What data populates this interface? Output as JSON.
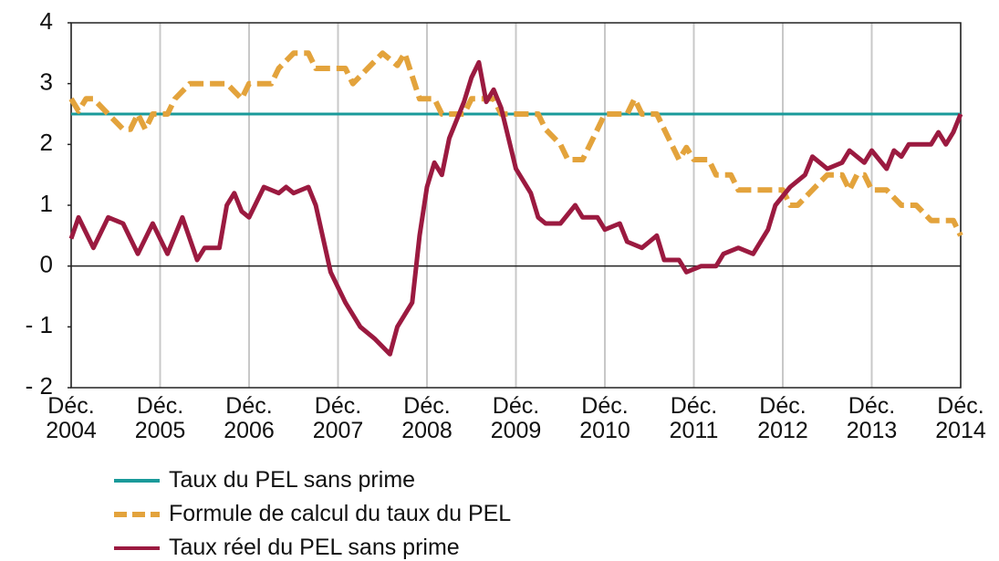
{
  "chart_data": {
    "type": "line",
    "xlim": [
      "2004-12",
      "2014-12"
    ],
    "xticks": [
      {
        "value": "2004-12",
        "label": "Déc. 2004"
      },
      {
        "value": "2005-12",
        "label": "Déc. 2005"
      },
      {
        "value": "2006-12",
        "label": "Déc. 2006"
      },
      {
        "value": "2007-12",
        "label": "Déc. 2007"
      },
      {
        "value": "2008-12",
        "label": "Déc. 2008"
      },
      {
        "value": "2009-12",
        "label": "Déc. 2009"
      },
      {
        "value": "2010-12",
        "label": "Déc. 2010"
      },
      {
        "value": "2011-12",
        "label": "Déc. 2011"
      },
      {
        "value": "2012-12",
        "label": "Déc. 2012"
      },
      {
        "value": "2013-12",
        "label": "Déc. 2013"
      },
      {
        "value": "2014-12",
        "label": "Déc. 2014"
      }
    ],
    "ylim": [
      -2,
      4
    ],
    "yticks": [
      {
        "value": -2,
        "label": "- 2"
      },
      {
        "value": -1,
        "label": "- 1"
      },
      0,
      1,
      2,
      3,
      4
    ],
    "grid": true,
    "legend": "bottom",
    "series": [
      {
        "name": "Taux du PEL sans prime",
        "color": "#1a9a9a",
        "dashed": false,
        "x": [
          "2004-12",
          "2014-12"
        ],
        "values": [
          2.5,
          2.5
        ]
      },
      {
        "name": "Formule de calcul du taux du PEL",
        "color": "#e3a33c",
        "dashed": true,
        "x": [
          "2004-12",
          "2005-01",
          "2005-02",
          "2005-03",
          "2005-05",
          "2005-07",
          "2005-08",
          "2005-09",
          "2005-10",
          "2005-11",
          "2006-01",
          "2006-02",
          "2006-04",
          "2006-09",
          "2006-11",
          "2006-12",
          "2007-03",
          "2007-04",
          "2007-06",
          "2007-08",
          "2007-09",
          "2008-01",
          "2008-02",
          "2008-04",
          "2008-06",
          "2008-08",
          "2008-09",
          "2008-11",
          "2009-01",
          "2009-02",
          "2009-05",
          "2009-06",
          "2009-09",
          "2009-10",
          "2010-03",
          "2010-04",
          "2010-06",
          "2010-07",
          "2010-09",
          "2010-11",
          "2010-12",
          "2011-03",
          "2011-04",
          "2011-05",
          "2011-07",
          "2011-09",
          "2011-10",
          "2011-11",
          "2011-12",
          "2012-02",
          "2012-03",
          "2012-05",
          "2012-06",
          "2012-11",
          "2012-12",
          "2013-01",
          "2013-02",
          "2013-04",
          "2013-06",
          "2013-08",
          "2013-09",
          "2013-10",
          "2013-11",
          "2013-12",
          "2014-02",
          "2014-04",
          "2014-06",
          "2014-08",
          "2014-11",
          "2014-12"
        ],
        "values": [
          2.75,
          2.55,
          2.75,
          2.75,
          2.5,
          2.25,
          2.25,
          2.5,
          2.25,
          2.5,
          2.5,
          2.75,
          3.0,
          3.0,
          2.75,
          3.0,
          3.0,
          3.25,
          3.5,
          3.5,
          3.25,
          3.25,
          3.0,
          3.25,
          3.5,
          3.3,
          3.5,
          2.75,
          2.75,
          2.5,
          2.5,
          2.75,
          2.75,
          2.5,
          2.5,
          2.25,
          2.0,
          1.75,
          1.75,
          2.25,
          2.5,
          2.5,
          2.75,
          2.5,
          2.5,
          2.0,
          1.75,
          1.95,
          1.75,
          1.75,
          1.5,
          1.5,
          1.25,
          1.25,
          1.25,
          1.0,
          1.0,
          1.25,
          1.5,
          1.5,
          1.25,
          1.5,
          1.5,
          1.25,
          1.25,
          1.0,
          1.0,
          0.75,
          0.75,
          0.5
        ]
      },
      {
        "name": "Taux réel du PEL sans prime",
        "color": "#9b1a40",
        "dashed": false,
        "x": [
          "2004-12",
          "2005-01",
          "2005-03",
          "2005-05",
          "2005-07",
          "2005-09",
          "2005-11",
          "2006-01",
          "2006-03",
          "2006-05",
          "2006-06",
          "2006-08",
          "2006-09",
          "2006-10",
          "2006-11",
          "2006-12",
          "2007-02",
          "2007-04",
          "2007-05",
          "2007-06",
          "2007-08",
          "2007-09",
          "2007-11",
          "2008-01",
          "2008-03",
          "2008-05",
          "2008-07",
          "2008-08",
          "2008-10",
          "2008-11",
          "2008-12",
          "2009-01",
          "2009-02",
          "2009-03",
          "2009-05",
          "2009-06",
          "2009-07",
          "2009-08",
          "2009-09",
          "2009-10",
          "2009-12",
          "2010-02",
          "2010-03",
          "2010-04",
          "2010-06",
          "2010-08",
          "2010-09",
          "2010-11",
          "2010-12",
          "2011-02",
          "2011-03",
          "2011-05",
          "2011-06",
          "2011-07",
          "2011-08",
          "2011-10",
          "2011-11",
          "2012-01",
          "2012-03",
          "2012-04",
          "2012-06",
          "2012-08",
          "2012-10",
          "2012-11",
          "2013-01",
          "2013-03",
          "2013-04",
          "2013-06",
          "2013-08",
          "2013-09",
          "2013-11",
          "2013-12",
          "2014-02",
          "2014-03",
          "2014-04",
          "2014-05",
          "2014-08",
          "2014-09",
          "2014-10",
          "2014-11",
          "2014-12"
        ],
        "values": [
          0.45,
          0.8,
          0.3,
          0.8,
          0.7,
          0.2,
          0.7,
          0.2,
          0.8,
          0.1,
          0.3,
          0.3,
          1.0,
          1.2,
          0.9,
          0.8,
          1.3,
          1.2,
          1.3,
          1.2,
          1.3,
          1.0,
          -0.1,
          -0.6,
          -1.0,
          -1.2,
          -1.45,
          -1.0,
          -0.6,
          0.5,
          1.3,
          1.7,
          1.5,
          2.1,
          2.7,
          3.1,
          3.35,
          2.7,
          2.9,
          2.6,
          1.6,
          1.2,
          0.8,
          0.7,
          0.7,
          1.0,
          0.8,
          0.8,
          0.6,
          0.7,
          0.4,
          0.3,
          0.4,
          0.5,
          0.1,
          0.1,
          -0.1,
          0.0,
          0.0,
          0.2,
          0.3,
          0.2,
          0.6,
          1.0,
          1.3,
          1.5,
          1.8,
          1.6,
          1.7,
          1.9,
          1.7,
          1.9,
          1.6,
          1.9,
          1.8,
          2.0,
          2.0,
          2.2,
          2.0,
          2.2,
          2.5
        ]
      }
    ]
  }
}
